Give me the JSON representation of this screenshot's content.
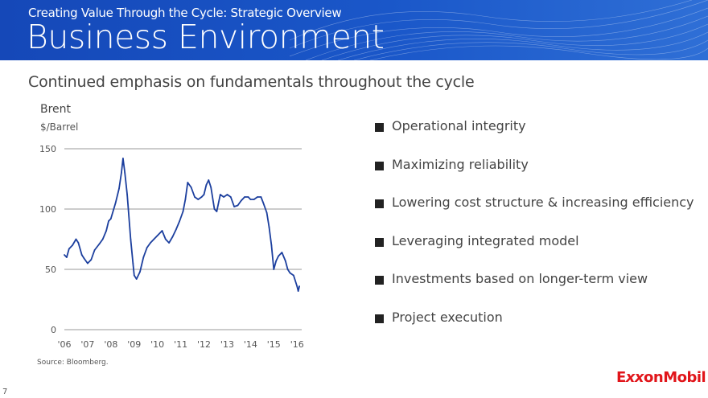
{
  "header": {
    "supertitle": "Creating Value Through the Cycle: Strategic Overview",
    "title": "Business Environment",
    "background_color": "#1a57c9"
  },
  "subtitle": "Continued emphasis on fundamentals throughout the cycle",
  "chart_data": {
    "type": "line",
    "title": "Brent",
    "ylabel": "$/Barrel",
    "xlabel": "",
    "ylim": [
      0,
      150
    ],
    "yticks": [
      0,
      50,
      100,
      150
    ],
    "xlim": [
      2006,
      2016.2
    ],
    "xtick_labels": [
      "'06",
      "'07",
      "'08",
      "'09",
      "'10",
      "'11",
      "'12",
      "'13",
      "'14",
      "'15",
      "'16"
    ],
    "grid": true,
    "line_color": "#1c3f9e",
    "series": [
      {
        "name": "Brent",
        "x": [
          2006.0,
          2006.1,
          2006.2,
          2006.35,
          2006.5,
          2006.6,
          2006.75,
          2006.85,
          2007.0,
          2007.15,
          2007.3,
          2007.5,
          2007.65,
          2007.8,
          2007.9,
          2008.0,
          2008.2,
          2008.35,
          2008.45,
          2008.52,
          2008.6,
          2008.7,
          2008.85,
          2008.95,
          2009.0,
          2009.1,
          2009.25,
          2009.4,
          2009.55,
          2009.7,
          2009.85,
          2010.0,
          2010.2,
          2010.35,
          2010.5,
          2010.65,
          2010.8,
          2010.95,
          2011.1,
          2011.2,
          2011.3,
          2011.45,
          2011.6,
          2011.75,
          2011.9,
          2012.0,
          2012.1,
          2012.2,
          2012.3,
          2012.45,
          2012.55,
          2012.7,
          2012.85,
          2013.0,
          2013.15,
          2013.3,
          2013.45,
          2013.6,
          2013.75,
          2013.9,
          2014.0,
          2014.15,
          2014.3,
          2014.45,
          2014.55,
          2014.7,
          2014.8,
          2014.9,
          2015.0,
          2015.1,
          2015.2,
          2015.35,
          2015.5,
          2015.6,
          2015.7,
          2015.85,
          2016.0,
          2016.05,
          2016.1
        ],
        "values": [
          62,
          60,
          67,
          70,
          75,
          72,
          62,
          59,
          55,
          58,
          66,
          71,
          75,
          82,
          90,
          92,
          105,
          117,
          130,
          142,
          130,
          112,
          75,
          55,
          45,
          42,
          48,
          60,
          68,
          72,
          75,
          78,
          82,
          75,
          72,
          77,
          83,
          90,
          98,
          108,
          122,
          118,
          110,
          108,
          110,
          112,
          120,
          124,
          118,
          100,
          98,
          112,
          110,
          112,
          110,
          102,
          103,
          107,
          110,
          110,
          108,
          108,
          110,
          110,
          105,
          97,
          85,
          70,
          50,
          57,
          61,
          64,
          57,
          50,
          47,
          45,
          36,
          32,
          36
        ]
      }
    ]
  },
  "source": "Source: Bloomberg.",
  "page_number": "7",
  "bullets": [
    "Operational integrity",
    "Maximizing reliability",
    "Lowering cost structure & increasing efficiency",
    "Leveraging integrated model",
    "Investments based on longer-term view",
    "Project execution"
  ],
  "logo": {
    "text_before": "E",
    "text_xx": "xx",
    "text_after": "onMobil",
    "color": "#e1151a"
  }
}
